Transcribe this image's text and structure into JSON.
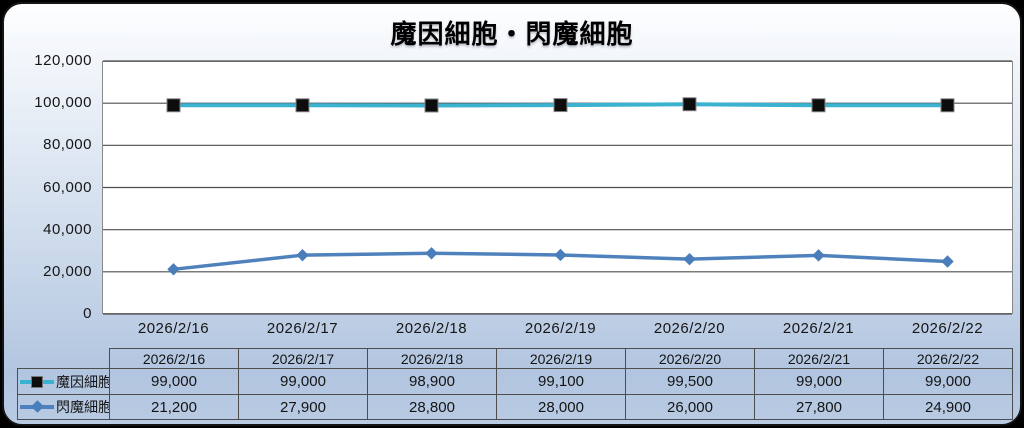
{
  "chart_data": {
    "type": "line",
    "title": "魔因細胞・閃魔細胞",
    "categories": [
      "2026/2/16",
      "2026/2/17",
      "2026/2/18",
      "2026/2/19",
      "2026/2/20",
      "2026/2/21",
      "2026/2/22"
    ],
    "series": [
      {
        "name": "魔因細胞",
        "values": [
          99000,
          99000,
          98900,
          99100,
          99500,
          99000,
          99000
        ],
        "line_color": "#3ab2d0",
        "marker": "square",
        "marker_color": "#0d0d0d"
      },
      {
        "name": "閃魔細胞",
        "values": [
          21200,
          27900,
          28800,
          28000,
          26000,
          27800,
          24900
        ],
        "line_color": "#4f81bd",
        "marker": "diamond",
        "marker_color": "#4a7ebb"
      }
    ],
    "xlabel": "",
    "ylabel": "",
    "ylim": [
      0,
      120000
    ],
    "y_step": 20000,
    "y_tick_labels": [
      "0",
      "20,000",
      "40,000",
      "60,000",
      "80,000",
      "100,000",
      "120,000"
    ],
    "grid": true,
    "gridline_color": "#4f4f4f",
    "legend_position": "data-table-left",
    "plot_bg": "#ffffff",
    "frame_bg_top": "#fdfeff",
    "frame_bg_bottom": "#b2c5e0"
  }
}
